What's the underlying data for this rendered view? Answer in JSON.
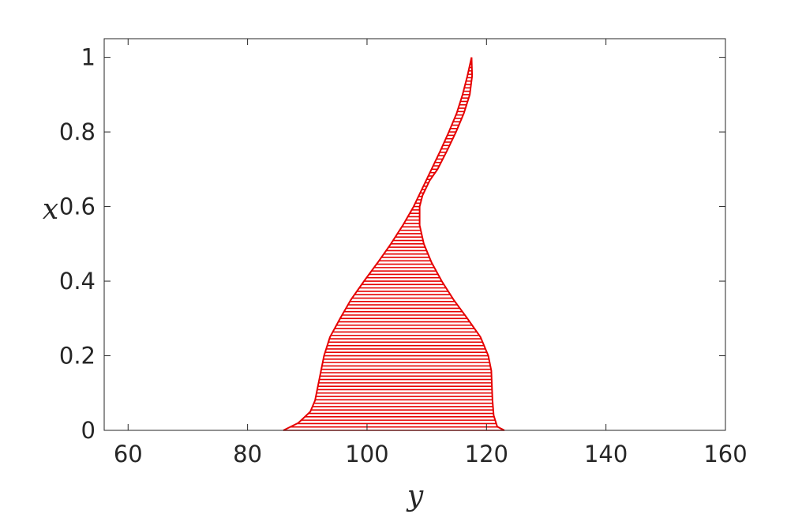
{
  "chart_data": {
    "type": "area",
    "title": "",
    "xlabel": "y",
    "ylabel": "x",
    "xlim": [
      56,
      160
    ],
    "ylim": [
      0,
      1.05
    ],
    "xticks": [
      60,
      80,
      100,
      120,
      140,
      160
    ],
    "xtick_labels": [
      "60",
      "80",
      "100",
      "120",
      "140",
      "160"
    ],
    "yticks": [
      0,
      0.2,
      0.4,
      0.6,
      0.8,
      1
    ],
    "ytick_labels": [
      "0",
      "0.2",
      "0.4",
      "0.6",
      "0.8",
      "1"
    ],
    "grid": false,
    "fill_style": "horizontal hatch lines",
    "color": "#e60000",
    "series": [
      {
        "role": "left boundary",
        "points": [
          [
            0,
            86
          ],
          [
            0.02,
            88.5
          ],
          [
            0.05,
            90.5
          ],
          [
            0.08,
            91.3
          ],
          [
            0.12,
            91.8
          ],
          [
            0.16,
            92.3
          ],
          [
            0.2,
            92.8
          ],
          [
            0.25,
            93.8
          ],
          [
            0.3,
            95.5
          ],
          [
            0.35,
            97.3
          ],
          [
            0.4,
            99.5
          ],
          [
            0.45,
            101.8
          ],
          [
            0.5,
            104.0
          ],
          [
            0.55,
            106.0
          ],
          [
            0.6,
            107.8
          ],
          [
            0.65,
            109.3
          ],
          [
            0.7,
            110.8
          ],
          [
            0.75,
            112.3
          ],
          [
            0.8,
            113.7
          ],
          [
            0.85,
            115.0
          ],
          [
            0.9,
            116.0
          ],
          [
            0.95,
            116.8
          ],
          [
            1.0,
            117.5
          ]
        ]
      },
      {
        "role": "right boundary",
        "points": [
          [
            0,
            123.0
          ],
          [
            0.01,
            121.8
          ],
          [
            0.04,
            121.2
          ],
          [
            0.08,
            121.0
          ],
          [
            0.12,
            120.9
          ],
          [
            0.16,
            120.8
          ],
          [
            0.2,
            120.3
          ],
          [
            0.25,
            119.0
          ],
          [
            0.3,
            116.8
          ],
          [
            0.35,
            114.5
          ],
          [
            0.4,
            112.5
          ],
          [
            0.45,
            110.8
          ],
          [
            0.5,
            109.5
          ],
          [
            0.55,
            108.8
          ],
          [
            0.6,
            108.8
          ],
          [
            0.63,
            109.3
          ],
          [
            0.67,
            110.5
          ],
          [
            0.7,
            111.8
          ],
          [
            0.75,
            113.4
          ],
          [
            0.8,
            114.9
          ],
          [
            0.85,
            116.2
          ],
          [
            0.9,
            117.2
          ],
          [
            0.95,
            117.6
          ],
          [
            1.0,
            117.5
          ]
        ]
      }
    ]
  }
}
